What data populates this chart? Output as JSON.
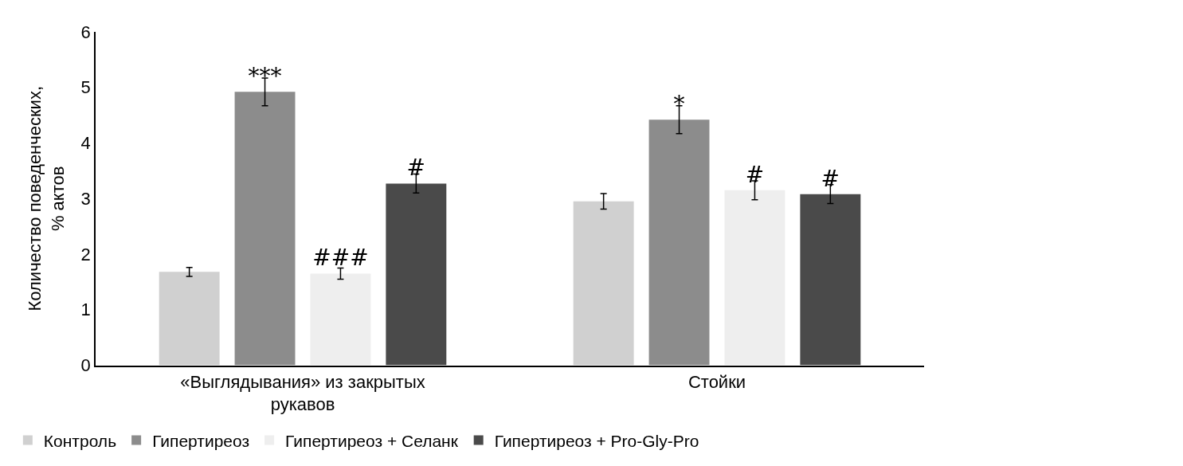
{
  "chart_data": {
    "type": "bar",
    "ylabel": "Количество поведенческих, % актов",
    "categories": [
      "«Выглядывания» из закрытых рукавов",
      "Стойки"
    ],
    "series": [
      {
        "name": "Контроль",
        "color": "#d0d0d0",
        "values": [
          1.68,
          2.95
        ],
        "errors": [
          0.08,
          0.14
        ]
      },
      {
        "name": "Гипертиреоз",
        "color": "#8c8c8c",
        "values": [
          4.92,
          4.42
        ],
        "errors": [
          0.25,
          0.25
        ],
        "value_labels": [
          "***",
          "*"
        ]
      },
      {
        "name": "Гипертиреоз + Селанк",
        "color": "#eeeeee",
        "values": [
          1.65,
          3.15
        ],
        "errors": [
          0.1,
          0.17
        ],
        "value_labels": [
          "###",
          "#"
        ]
      },
      {
        "name": "Гипертиреоз + Pro-Gly-Pro",
        "color": "#4a4a4a",
        "values": [
          3.27,
          3.08
        ],
        "errors": [
          0.17,
          0.17
        ],
        "value_labels": [
          "#",
          "#"
        ]
      }
    ],
    "ylim": [
      0,
      6
    ],
    "yticks": [
      0,
      1,
      2,
      3,
      4,
      5,
      6
    ],
    "legend": "bottom"
  }
}
